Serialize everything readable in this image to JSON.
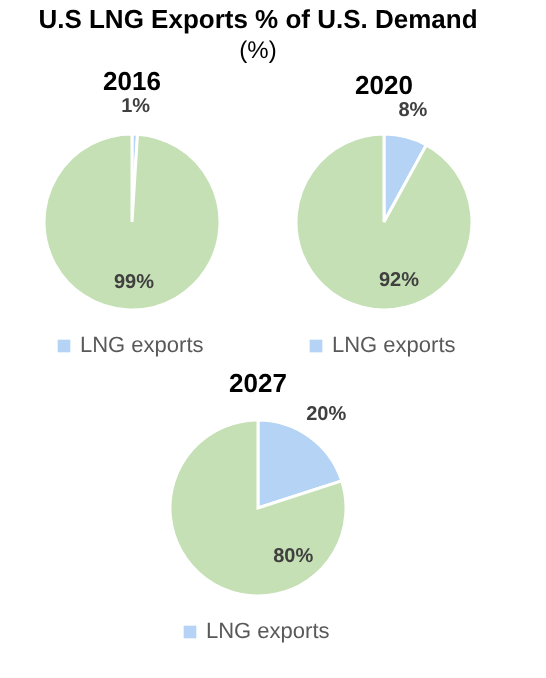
{
  "chart_data": [
    {
      "type": "other",
      "title": "U.S LNG Exports % of U.S. Demand",
      "subtitle": "(%)"
    },
    {
      "type": "pie",
      "title": "2016",
      "categories": [
        "LNG exports",
        null
      ],
      "values": [
        1,
        99
      ],
      "colors": [
        "#b4d3f5",
        "#c5e0b4"
      ],
      "value_labels": [
        "1%",
        "99%"
      ],
      "legend": "bottom"
    },
    {
      "type": "pie",
      "title": "2020",
      "categories": [
        "LNG exports",
        null
      ],
      "values": [
        8,
        92
      ],
      "colors": [
        "#b4d3f5",
        "#c5e0b4"
      ],
      "value_labels": [
        "8%",
        "92%"
      ],
      "legend": "bottom"
    },
    {
      "type": "pie",
      "title": "2027",
      "categories": [
        "LNG exports",
        null
      ],
      "values": [
        20,
        80
      ],
      "colors": [
        "#b4d3f5",
        "#c5e0b4"
      ],
      "value_labels": [
        "20%",
        "80%"
      ],
      "legend": "bottom"
    }
  ]
}
